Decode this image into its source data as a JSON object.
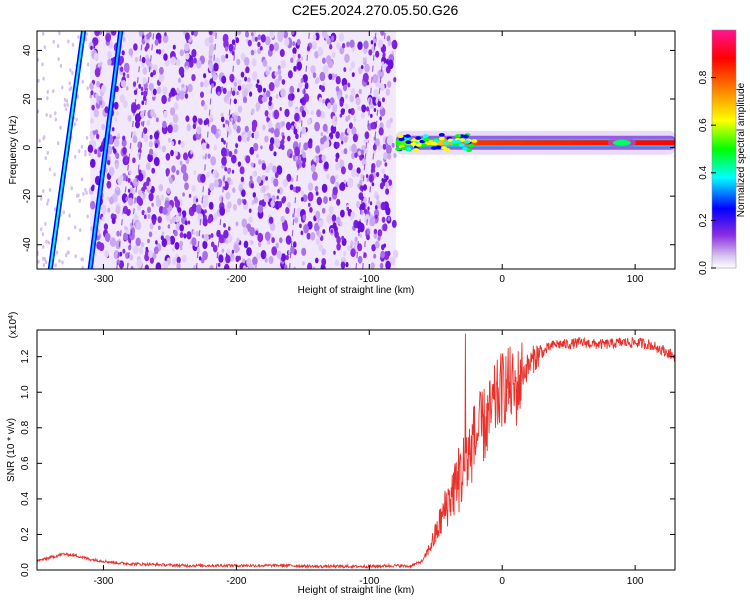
{
  "title": "C2E5.2024.270.05.50.G26",
  "chart_data": [
    {
      "type": "heatmap",
      "xlabel": "Height of straight line (km)",
      "ylabel": "Frequency (Hz)",
      "xlim": [
        -350,
        130
      ],
      "ylim": [
        -50,
        48
      ],
      "x_ticks": [
        -300,
        -200,
        -100,
        0,
        100
      ],
      "y_ticks": [
        -40,
        -20,
        0,
        20,
        40
      ],
      "x_tick_labels": [
        "-300",
        "-200",
        "-100",
        "0",
        "100"
      ],
      "y_tick_labels": [
        "-40",
        "-20",
        "0",
        "20",
        "40"
      ],
      "colorbar": {
        "label": "Normalized spectral amplitude",
        "range": [
          0,
          1
        ],
        "ticks": [
          0.0,
          0.2,
          0.4,
          0.6,
          0.8
        ],
        "tick_labels": [
          "0.0",
          "0.2",
          "0.4",
          "0.6",
          "0.8"
        ],
        "colors": [
          "#ffffff",
          "#8a2be2",
          "#0000ff",
          "#00ffff",
          "#00ff00",
          "#ffff00",
          "#ff8000",
          "#ff0000",
          "#ff00ff"
        ]
      },
      "noise_region_x": [
        -310,
        -80
      ],
      "signal_line": {
        "x_start": -80,
        "x_end": 130,
        "frequency": 2
      },
      "diagonal_streaks": [
        {
          "x_bottom": -340,
          "x_top": -315
        },
        {
          "x_bottom": -310,
          "x_top": -287
        }
      ]
    },
    {
      "type": "line",
      "xlabel": "Height of straight line (km)",
      "ylabel": "SNR (10 * v/v)",
      "y_multiplier": "(x10^4)",
      "y_multiplier_base": "(x10",
      "y_multiplier_exp": "4",
      "y_multiplier_close": ")",
      "xlim": [
        -350,
        130
      ],
      "ylim": [
        0,
        1.35
      ],
      "x_ticks": [
        -300,
        -200,
        -100,
        0,
        100
      ],
      "y_ticks": [
        0.0,
        0.2,
        0.4,
        0.6,
        0.8,
        1.0,
        1.2
      ],
      "x_tick_labels": [
        "-300",
        "-200",
        "-100",
        "0",
        "100"
      ],
      "y_tick_labels": [
        "0.0",
        "0.2",
        "0.4",
        "0.6",
        "0.8",
        "1.0",
        "1.2"
      ],
      "color": "#e8312a",
      "series": [
        {
          "x": [
            -350,
            -340,
            -330,
            -320,
            -310,
            -300,
            -290,
            -280,
            -260,
            -240,
            -220,
            -200,
            -180,
            -160,
            -140,
            -120,
            -100,
            -80,
            -70,
            -60,
            -55,
            -50,
            -45,
            -40,
            -35,
            -30,
            -25,
            -20,
            -15,
            -10,
            -5,
            0,
            5,
            10,
            15,
            20,
            25,
            30,
            35,
            40,
            50,
            60,
            70,
            80,
            90,
            100,
            110,
            120,
            130
          ],
          "y": [
            0.05,
            0.07,
            0.09,
            0.08,
            0.06,
            0.05,
            0.04,
            0.035,
            0.03,
            0.025,
            0.025,
            0.025,
            0.025,
            0.025,
            0.02,
            0.02,
            0.02,
            0.025,
            0.02,
            0.05,
            0.12,
            0.2,
            0.3,
            0.4,
            0.48,
            0.55,
            0.65,
            0.75,
            0.8,
            0.85,
            0.95,
            1.02,
            1.05,
            1.0,
            1.1,
            1.15,
            1.2,
            1.22,
            1.25,
            1.27,
            1.27,
            1.28,
            1.27,
            1.27,
            1.28,
            1.28,
            1.27,
            1.24,
            1.2
          ]
        }
      ]
    }
  ]
}
